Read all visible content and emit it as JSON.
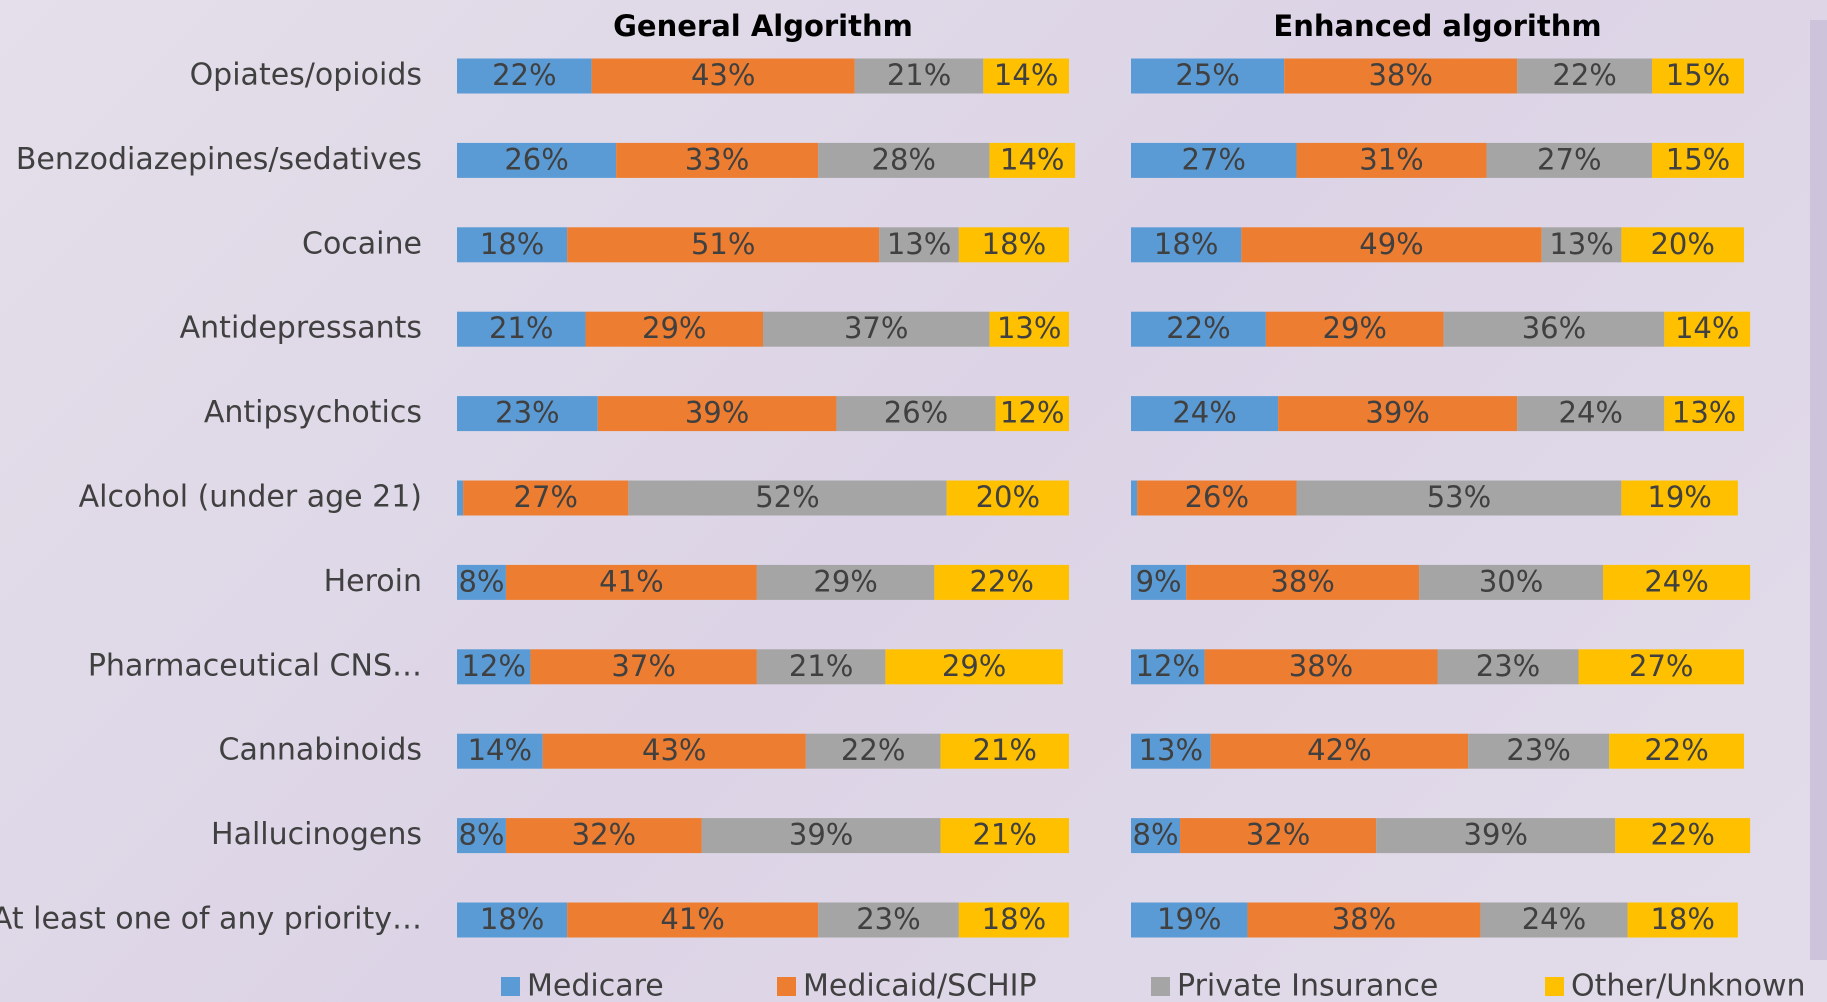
{
  "chart_data": {
    "type": "stacked_bar_h",
    "categories": [
      "Opiates/opioids",
      "Benzodiazepines/sedatives",
      "Cocaine",
      "Antidepressants",
      "Antipsychotics",
      "Alcohol (under age 21)",
      "Heroin",
      "Pharmaceutical CNS…",
      "Cannabinoids",
      "Hallucinogens",
      "At least one of any priority…"
    ],
    "panels": [
      {
        "title": "General Algorithm"
      },
      {
        "title": "Enhanced algorithm"
      }
    ],
    "xlim": [
      0,
      100
    ],
    "series": [
      {
        "name": "Medicare",
        "color": "#5b9bd5",
        "values": [
          [
            22,
            26,
            18,
            21,
            23,
            1,
            8,
            12,
            14,
            8,
            18
          ],
          [
            25,
            27,
            18,
            22,
            24,
            1,
            9,
            12,
            13,
            8,
            19
          ]
        ],
        "value_labels": [
          [
            "22%",
            "26%",
            "18%",
            "21%",
            "23%",
            null,
            "8%",
            "12%",
            "14%",
            "8%",
            "18%"
          ],
          [
            "25%",
            "27%",
            "18%",
            "22%",
            "24%",
            null,
            "9%",
            "12%",
            "13%",
            "8%",
            "19%"
          ]
        ]
      },
      {
        "name": "Medicaid/SCHIP",
        "color": "#ed7d31",
        "values": [
          [
            43,
            33,
            51,
            29,
            39,
            27,
            41,
            37,
            43,
            32,
            41
          ],
          [
            38,
            31,
            49,
            29,
            39,
            26,
            38,
            38,
            42,
            32,
            38
          ]
        ],
        "value_labels": [
          [
            "43%",
            "33%",
            "51%",
            "29%",
            "39%",
            "27%",
            "41%",
            "37%",
            "43%",
            "32%",
            "41%"
          ],
          [
            "38%",
            "31%",
            "49%",
            "29%",
            "39%",
            "26%",
            "38%",
            "38%",
            "42%",
            "32%",
            "38%"
          ]
        ]
      },
      {
        "name": "Private Insurance",
        "color": "#a5a5a5",
        "values": [
          [
            21,
            28,
            13,
            37,
            26,
            52,
            29,
            21,
            22,
            39,
            23
          ],
          [
            22,
            27,
            13,
            36,
            24,
            53,
            30,
            23,
            23,
            39,
            24
          ]
        ],
        "value_labels": [
          [
            "21%",
            "28%",
            "13%",
            "37%",
            "26%",
            "52%",
            "29%",
            "21%",
            "22%",
            "39%",
            "23%"
          ],
          [
            "22%",
            "27%",
            "13%",
            "36%",
            "24%",
            "53%",
            "30%",
            "23%",
            "23%",
            "39%",
            "24%"
          ]
        ]
      },
      {
        "name": "Other/Unknown",
        "color": "#ffc000",
        "values": [
          [
            14,
            14,
            18,
            13,
            12,
            20,
            22,
            29,
            21,
            21,
            18
          ],
          [
            15,
            15,
            20,
            14,
            13,
            19,
            24,
            27,
            22,
            22,
            18
          ]
        ],
        "value_labels": [
          [
            "14%",
            "14%",
            "18%",
            "13%",
            "12%",
            "20%",
            "22%",
            "29%",
            "21%",
            "21%",
            "18%"
          ],
          [
            "15%",
            "15%",
            "20%",
            "14%",
            "13%",
            "19%",
            "24%",
            "27%",
            "22%",
            "22%",
            "18%"
          ]
        ]
      }
    ]
  }
}
